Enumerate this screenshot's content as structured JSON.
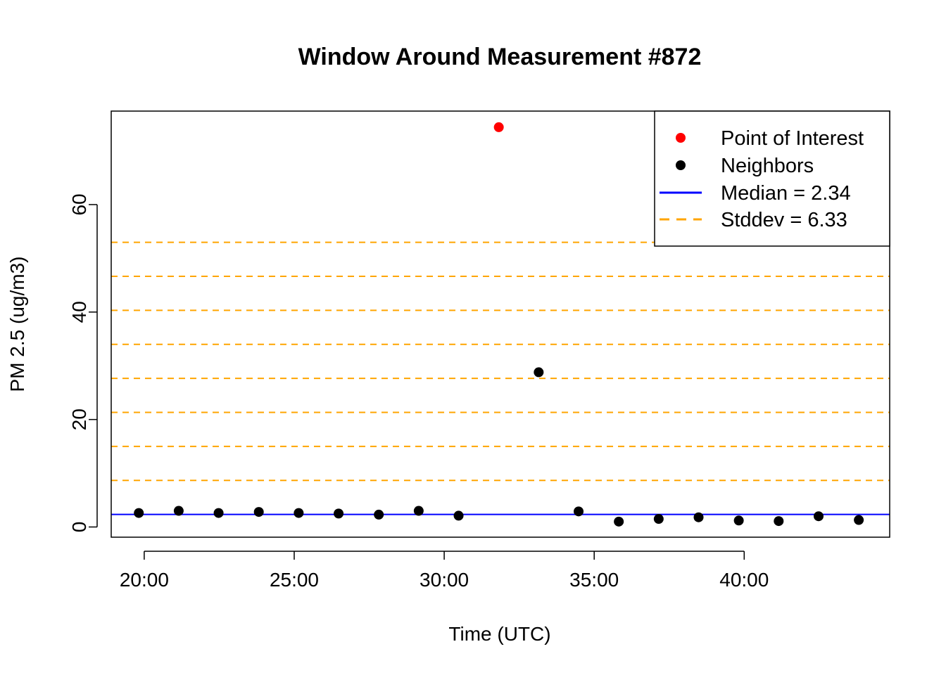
{
  "chart_data": {
    "type": "scatter",
    "title": "Window Around Measurement #872",
    "xlabel": "Time (UTC)",
    "ylabel": "PM 2.5 (ug/m3)",
    "x_ticks": [
      "20:00",
      "25:00",
      "30:00",
      "35:00",
      "40:00"
    ],
    "x_tick_minutes": [
      20,
      25,
      30,
      35,
      40
    ],
    "xlim_minutes": [
      18.9,
      44.85
    ],
    "y_ticks": [
      0,
      20,
      40,
      60
    ],
    "ylim": [
      -1.9,
      77.4
    ],
    "grid": false,
    "legend_position": "top-right",
    "colors": {
      "point_of_interest": "#ff0000",
      "neighbors": "#000000",
      "median": "#0000ff",
      "stddev": "#ffa500"
    },
    "series": [
      {
        "name": "Point of Interest",
        "points": [
          {
            "x_minutes": 31.82,
            "y": 74.4
          }
        ]
      },
      {
        "name": "Neighbors",
        "points": [
          {
            "x_minutes": 19.82,
            "y": 2.6
          },
          {
            "x_minutes": 21.15,
            "y": 3.0
          },
          {
            "x_minutes": 22.48,
            "y": 2.6
          },
          {
            "x_minutes": 23.82,
            "y": 2.8
          },
          {
            "x_minutes": 25.15,
            "y": 2.6
          },
          {
            "x_minutes": 26.48,
            "y": 2.5
          },
          {
            "x_minutes": 27.82,
            "y": 2.3
          },
          {
            "x_minutes": 29.15,
            "y": 3.0
          },
          {
            "x_minutes": 30.48,
            "y": 2.1
          },
          {
            "x_minutes": 33.15,
            "y": 28.8
          },
          {
            "x_minutes": 34.48,
            "y": 2.9
          },
          {
            "x_minutes": 35.82,
            "y": 1.0
          },
          {
            "x_minutes": 37.15,
            "y": 1.5
          },
          {
            "x_minutes": 38.48,
            "y": 1.8
          },
          {
            "x_minutes": 39.82,
            "y": 1.2
          },
          {
            "x_minutes": 41.15,
            "y": 1.1
          },
          {
            "x_minutes": 42.48,
            "y": 2.0
          },
          {
            "x_minutes": 43.82,
            "y": 1.3
          }
        ]
      }
    ],
    "median": {
      "label": "Median = 2.34",
      "value": 2.34
    },
    "stddev": {
      "label": "Stddev = 6.33",
      "value": 6.33,
      "lines": [
        8.67,
        15.0,
        21.33,
        27.66,
        33.99,
        40.32,
        46.65,
        52.98
      ]
    },
    "legend": [
      {
        "label": "Point of Interest",
        "kind": "point",
        "color": "#ff0000"
      },
      {
        "label": "Neighbors",
        "kind": "point",
        "color": "#000000"
      },
      {
        "label": "Median = 2.34",
        "kind": "solid-line",
        "color": "#0000ff"
      },
      {
        "label": "Stddev = 6.33",
        "kind": "dashed-line",
        "color": "#ffa500"
      }
    ]
  }
}
